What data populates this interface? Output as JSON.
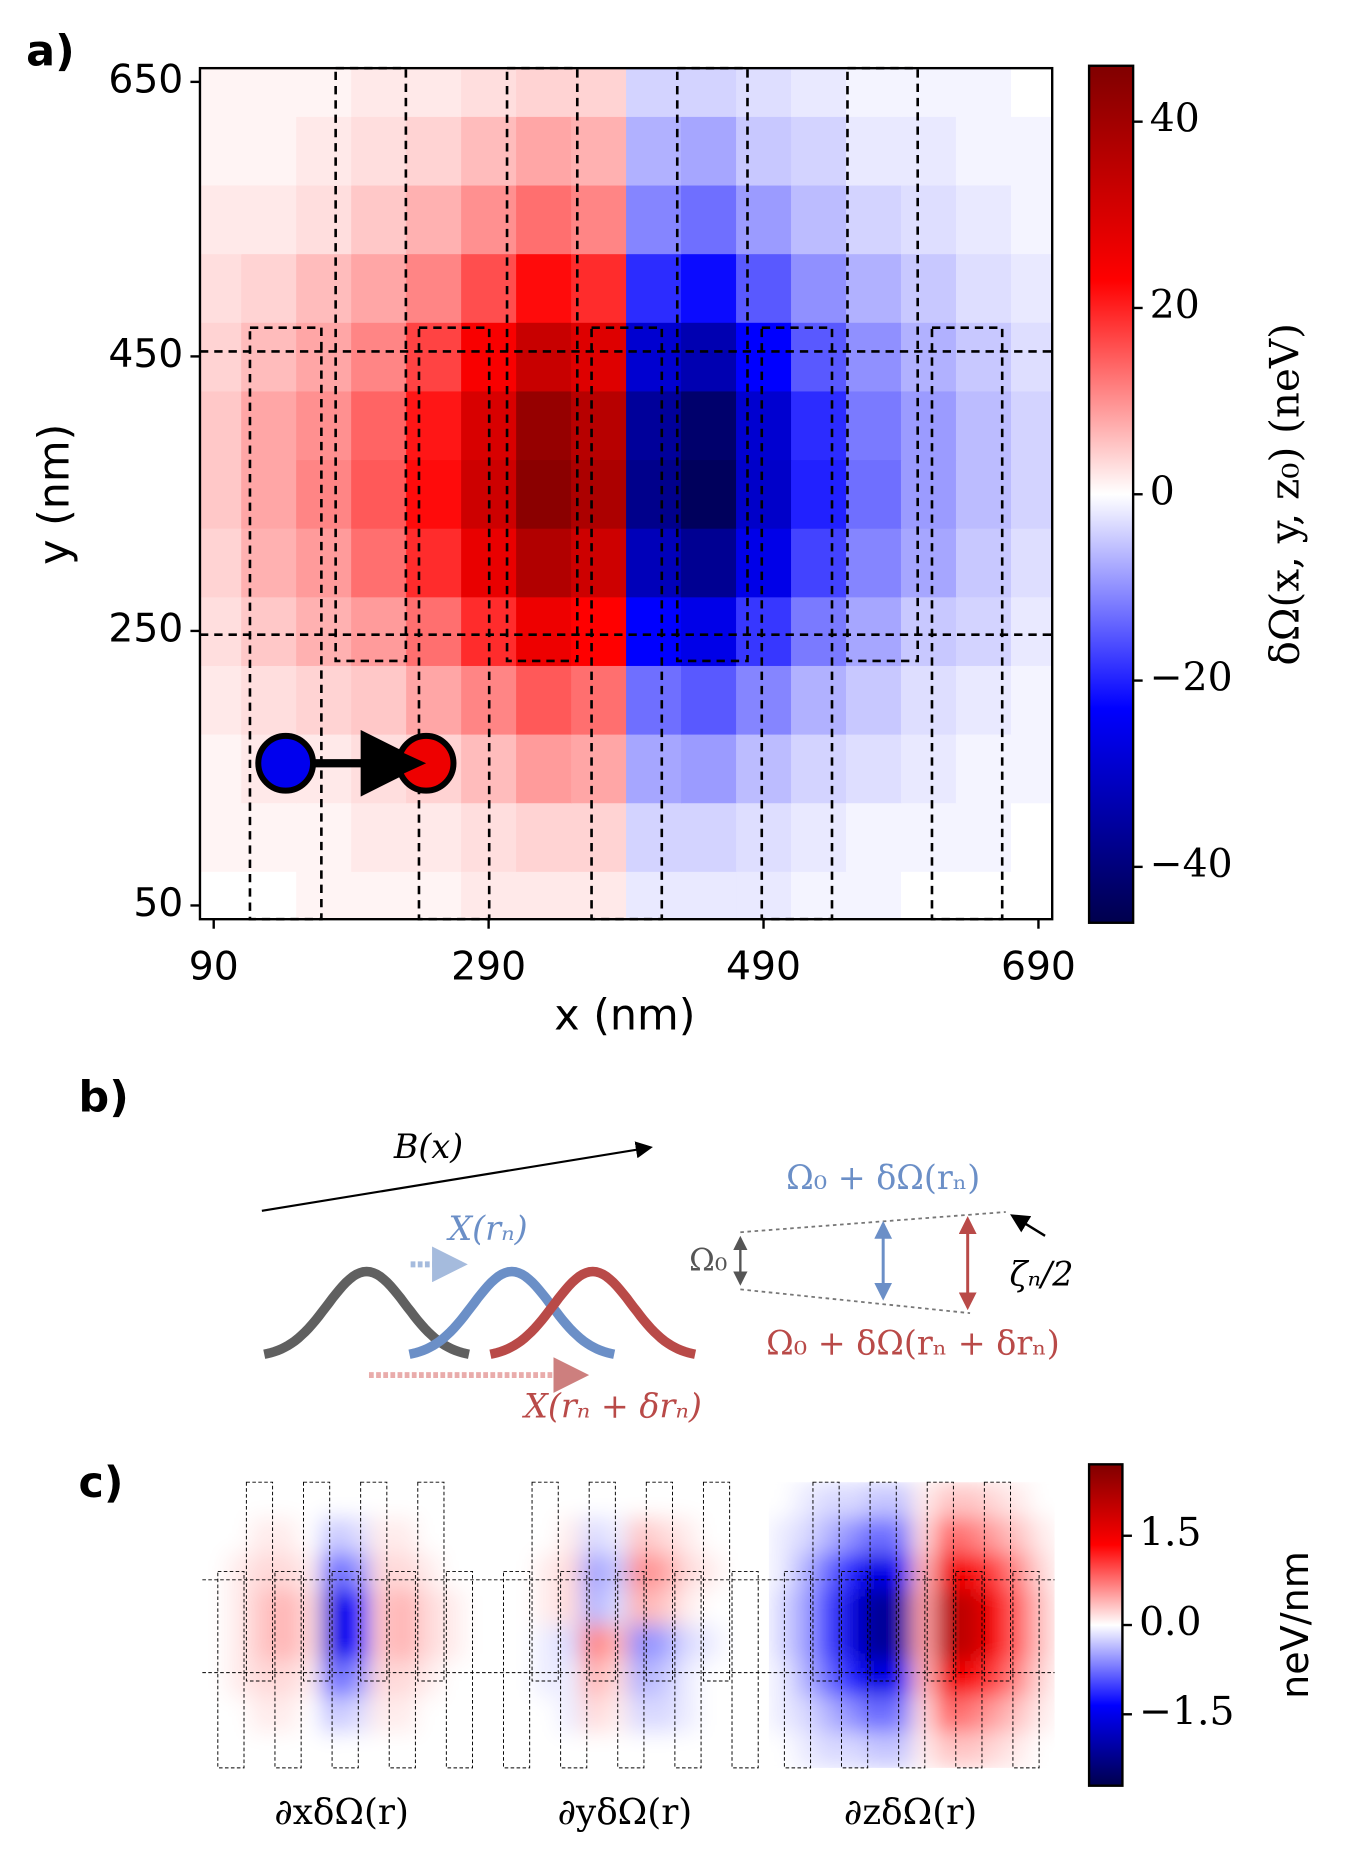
{
  "panels": {
    "a": "a)",
    "b": "b)",
    "c": "c)"
  },
  "chart_data": [
    {
      "type": "heatmap",
      "colormap": "seismic",
      "x": [
        90,
        130,
        170,
        210,
        250,
        290,
        330,
        370,
        410,
        450,
        490,
        530,
        570,
        610,
        650,
        690
      ],
      "y": [
        50,
        100,
        150,
        200,
        250,
        300,
        350,
        400,
        450,
        500,
        550,
        600,
        650
      ],
      "z": [
        [
          0,
          0,
          1,
          1,
          1,
          2,
          2,
          2,
          -2,
          -2,
          -2,
          -1,
          -1,
          0,
          0,
          0
        ],
        [
          1,
          1,
          1,
          2,
          2,
          3,
          4,
          4,
          -4,
          -4,
          -3,
          -2,
          -1,
          -1,
          -1,
          0
        ],
        [
          1,
          2,
          2,
          3,
          4,
          6,
          9,
          8,
          -8,
          -9,
          -6,
          -4,
          -3,
          -2,
          -1,
          -1
        ],
        [
          2,
          3,
          4,
          5,
          8,
          11,
          15,
          13,
          -13,
          -15,
          -11,
          -7,
          -5,
          -3,
          -2,
          -1
        ],
        [
          3,
          5,
          7,
          9,
          13,
          19,
          26,
          23,
          -23,
          -26,
          -18,
          -12,
          -8,
          -5,
          -4,
          -2
        ],
        [
          4,
          7,
          9,
          13,
          19,
          27,
          37,
          32,
          -32,
          -37,
          -26,
          -17,
          -11,
          -8,
          -5,
          -3
        ],
        [
          5,
          8,
          11,
          15,
          22,
          32,
          44,
          38,
          -38,
          -44,
          -30,
          -20,
          -13,
          -9,
          -6,
          -4
        ],
        [
          5,
          8,
          10,
          14,
          21,
          30,
          42,
          36,
          -36,
          -42,
          -29,
          -19,
          -12,
          -9,
          -6,
          -4
        ],
        [
          4,
          6,
          8,
          11,
          17,
          24,
          33,
          29,
          -29,
          -33,
          -23,
          -15,
          -10,
          -7,
          -5,
          -3
        ],
        [
          3,
          4,
          6,
          8,
          11,
          16,
          22,
          19,
          -19,
          -22,
          -15,
          -10,
          -7,
          -5,
          -3,
          -2
        ],
        [
          2,
          2,
          3,
          5,
          7,
          10,
          13,
          11,
          -11,
          -13,
          -9,
          -6,
          -4,
          -3,
          -2,
          -1
        ],
        [
          1,
          1,
          2,
          3,
          4,
          6,
          8,
          7,
          -7,
          -8,
          -5,
          -4,
          -2,
          -2,
          -1,
          -1
        ],
        [
          1,
          1,
          1,
          2,
          2,
          3,
          4,
          4,
          -4,
          -4,
          -3,
          -2,
          -1,
          -1,
          -1,
          0
        ]
      ],
      "xlim": [
        80,
        700
      ],
      "ylim": [
        40,
        660
      ],
      "xticks": [
        90,
        290,
        490,
        690
      ],
      "yticks": [
        50,
        250,
        450,
        650
      ],
      "xlabel": "x (nm)",
      "ylabel": "y (nm)",
      "colorbar": {
        "label": "δΩ(x, y, z₀) (neV)",
        "lim": [
          -46,
          46
        ],
        "ticks": [
          {
            "value": -40,
            "label": "−40"
          },
          {
            "value": -20,
            "label": "−20"
          },
          0,
          20,
          40
        ]
      }
    },
    {
      "type": "heatmap",
      "colormap": "seismic",
      "title": "∂xδΩ(r)",
      "z": [
        [
          0,
          0,
          0,
          0,
          0,
          0,
          0,
          0,
          0,
          0,
          0,
          0
        ],
        [
          0,
          0,
          0.1,
          0.1,
          0,
          -0.3,
          -0.2,
          0.1,
          0.1,
          0,
          0,
          0
        ],
        [
          0,
          0.1,
          0.2,
          0.2,
          0.1,
          -0.8,
          -0.6,
          0.2,
          0.2,
          0.1,
          0,
          0
        ],
        [
          0,
          0.1,
          0.3,
          0.4,
          0.2,
          -1.6,
          -1.3,
          0.3,
          0.4,
          0.2,
          0.1,
          0
        ],
        [
          0,
          0.1,
          0.3,
          0.4,
          0.2,
          -1.6,
          -1.3,
          0.3,
          0.4,
          0.2,
          0.1,
          0
        ],
        [
          0,
          0.1,
          0.2,
          0.2,
          0.1,
          -0.8,
          -0.6,
          0.2,
          0.2,
          0.1,
          0,
          0
        ],
        [
          0,
          0,
          0.1,
          0.1,
          0,
          -0.3,
          -0.2,
          0.1,
          0.1,
          0,
          0,
          0
        ],
        [
          0,
          0,
          0,
          0,
          0,
          0,
          0,
          0,
          0,
          0,
          0,
          0
        ]
      ]
    },
    {
      "type": "heatmap",
      "colormap": "seismic",
      "title": "∂yδΩ(r)",
      "z": [
        [
          0,
          0,
          0,
          0,
          0,
          0,
          0,
          0,
          0,
          0,
          0,
          0
        ],
        [
          0,
          0,
          0,
          0.1,
          -0.2,
          -0.1,
          0.3,
          0.2,
          0.1,
          0,
          0,
          0
        ],
        [
          0,
          0,
          0.1,
          0.2,
          -0.5,
          -0.3,
          0.6,
          0.5,
          0.2,
          0.1,
          0,
          0
        ],
        [
          0,
          0,
          0.1,
          0.2,
          -0.4,
          -0.2,
          0.4,
          0.3,
          0.1,
          0,
          0,
          0
        ],
        [
          0,
          0,
          -0.1,
          -0.2,
          0.7,
          0.4,
          -0.6,
          -0.5,
          -0.2,
          -0.1,
          0,
          0
        ],
        [
          0,
          0,
          -0.1,
          -0.1,
          0.4,
          0.2,
          -0.4,
          -0.3,
          -0.1,
          0,
          0,
          0
        ],
        [
          0,
          0,
          0,
          -0.1,
          0.2,
          0.1,
          -0.2,
          -0.2,
          -0.1,
          0,
          0,
          0
        ],
        [
          0,
          0,
          0,
          0,
          0,
          0,
          0,
          0,
          0,
          0,
          0,
          0
        ]
      ]
    },
    {
      "type": "heatmap",
      "colormap": "seismic",
      "title": "∂zδΩ(r)",
      "z": [
        [
          0,
          -0.1,
          -0.2,
          -0.2,
          -0.3,
          -0.3,
          0.1,
          0.3,
          0.3,
          0.2,
          0.1,
          0
        ],
        [
          -0.1,
          -0.2,
          -0.4,
          -0.6,
          -0.8,
          -0.7,
          0.2,
          0.8,
          0.7,
          0.5,
          0.3,
          0.1
        ],
        [
          -0.1,
          -0.4,
          -0.8,
          -1.2,
          -1.6,
          -1.4,
          0.4,
          1.5,
          1.4,
          1.0,
          0.6,
          0.2
        ],
        [
          -0.2,
          -0.5,
          -1.0,
          -1.6,
          -2.2,
          -2.0,
          0.5,
          2.1,
          2.0,
          1.4,
          0.8,
          0.3
        ],
        [
          -0.2,
          -0.5,
          -1.0,
          -1.6,
          -2.2,
          -2.0,
          0.5,
          2.1,
          2.0,
          1.4,
          0.8,
          0.3
        ],
        [
          -0.1,
          -0.4,
          -0.8,
          -1.2,
          -1.6,
          -1.4,
          0.4,
          1.5,
          1.4,
          1.0,
          0.6,
          0.2
        ],
        [
          -0.1,
          -0.2,
          -0.4,
          -0.6,
          -0.8,
          -0.7,
          0.2,
          0.8,
          0.7,
          0.5,
          0.3,
          0.1
        ],
        [
          0,
          -0.1,
          -0.2,
          -0.2,
          -0.3,
          -0.3,
          0.1,
          0.3,
          0.3,
          0.2,
          0.1,
          0
        ]
      ]
    }
  ],
  "colorbar_c": {
    "label": "neV/nm",
    "lim": [
      -2.7,
      2.7
    ],
    "ticks": [
      {
        "value": -1.5,
        "label": "−1.5"
      },
      {
        "value": 0,
        "label": "0.0"
      },
      1.5
    ]
  },
  "diagram": {
    "field": "B(x)",
    "wave": "X(rₙ)",
    "wave_shifted": "X(rₙ + δrₙ)",
    "omega0": "Ω₀",
    "omega": "Ω₀ + δΩ(rₙ)",
    "omega_shifted": "Ω₀ + δΩ(rₙ + δrₙ)",
    "zeta": "ζₙ/2"
  }
}
